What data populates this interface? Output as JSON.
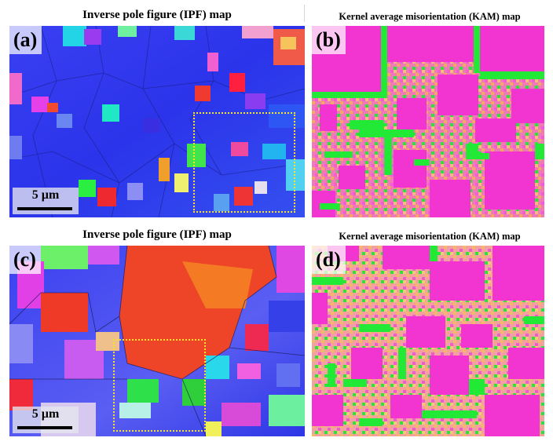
{
  "figure": {
    "panels": [
      {
        "id": "a",
        "label": "(a)",
        "title": "Inverse pole figure (IPF) map",
        "scale_bar": "5 µm",
        "map_type": "ipf",
        "dominant_color": "#2f3cf0"
      },
      {
        "id": "b",
        "label": "(b)",
        "title": "Kernel average misorientation (KAM) map",
        "map_type": "kam",
        "dominant_color": "#f05acb"
      },
      {
        "id": "c",
        "label": "(c)",
        "title": "Inverse pole figure (IPF) map",
        "scale_bar": "5 µm",
        "map_type": "ipf",
        "dominant_color": "#ee4a2a"
      },
      {
        "id": "d",
        "label": "(d)",
        "title": "Kernel average misorientation (KAM) map",
        "map_type": "kam",
        "dominant_color": "#f07ab0"
      }
    ],
    "colors": {
      "ipf_blue": "#2a35ee",
      "ipf_red": "#f0452c",
      "kam_magenta": "#f234d0",
      "kam_green": "#22e836",
      "kam_orange": "#f7a45a",
      "highlight_box": "#f2e32d"
    }
  }
}
